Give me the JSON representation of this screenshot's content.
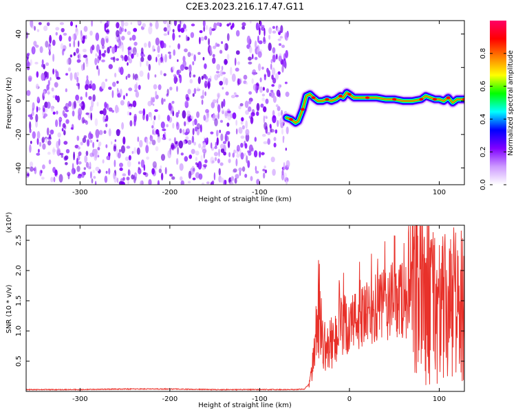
{
  "title": "C2E3.2023.216.17.47.G11",
  "chart_data": [
    {
      "type": "heatmap",
      "xlabel": "Height of straight line (km)",
      "ylabel": "Frequency (Hz)",
      "xlim": [
        -360,
        128
      ],
      "ylim": [
        -50,
        48
      ],
      "xticks": [
        -300,
        -200,
        -100,
        0,
        100
      ],
      "yticks": [
        -40,
        -20,
        0,
        20,
        40
      ],
      "noise_region_x": [
        -360,
        -68
      ],
      "signal_track": {
        "x": [
          -70,
          -65,
          -60,
          -57,
          -52,
          -48,
          -44,
          -40,
          -35,
          -30,
          -25,
          -20,
          -15,
          -10,
          -7,
          -3,
          0,
          5,
          10,
          20,
          30,
          40,
          50,
          60,
          70,
          80,
          85,
          90,
          95,
          100,
          105,
          110,
          115,
          120,
          128
        ],
        "y": [
          -10,
          -11,
          -13,
          -12,
          -5,
          3,
          4,
          2,
          0,
          0,
          1,
          0,
          1,
          3,
          2,
          5,
          4,
          2,
          2,
          2,
          2,
          1,
          1,
          0,
          0,
          1,
          3,
          2,
          1,
          1,
          0,
          2,
          -1,
          1,
          1
        ]
      },
      "colorbar": {
        "label": "Normalized spectral amplitude",
        "range": [
          0.0,
          1.0
        ],
        "ticks": [
          "0.0",
          "0.2",
          "0.4",
          "0.6",
          "0.8"
        ],
        "colormap": [
          "#ffffff",
          "#cc99ff",
          "#8000ff",
          "#0000ff",
          "#00ffff",
          "#00ff00",
          "#ffff00",
          "#ff8000",
          "#ff0000",
          "#ff0066"
        ]
      },
      "grid": false
    },
    {
      "type": "line",
      "xlabel": "Height of straight line (km)",
      "ylabel": "SNR (10 * v/v)",
      "y_multiplier": "(x10⁴)",
      "xlim": [
        -360,
        128
      ],
      "ylim": [
        0,
        2.75
      ],
      "xticks": [
        -300,
        -200,
        -100,
        0,
        100
      ],
      "yticks": [
        "0.5",
        "1.0",
        "1.5",
        "2.0",
        "2.5"
      ],
      "series": [
        {
          "color": "#e8312a",
          "x": [
            -360,
            -300,
            -250,
            -200,
            -150,
            -100,
            -60,
            -50,
            -45,
            -40,
            -35,
            -30,
            -25,
            -20,
            -10,
            0,
            10,
            20,
            30,
            40,
            50,
            60,
            70,
            80,
            90,
            100,
            110,
            120,
            128
          ],
          "y": [
            0.03,
            0.03,
            0.04,
            0.04,
            0.03,
            0.03,
            0.03,
            0.04,
            0.12,
            0.5,
            1.3,
            0.8,
            0.7,
            0.8,
            1.0,
            1.1,
            1.2,
            1.25,
            1.35,
            1.45,
            1.5,
            1.55,
            1.5,
            1.6,
            1.5,
            1.4,
            1.3,
            1.45,
            1.3
          ]
        }
      ],
      "grid": false
    }
  ]
}
